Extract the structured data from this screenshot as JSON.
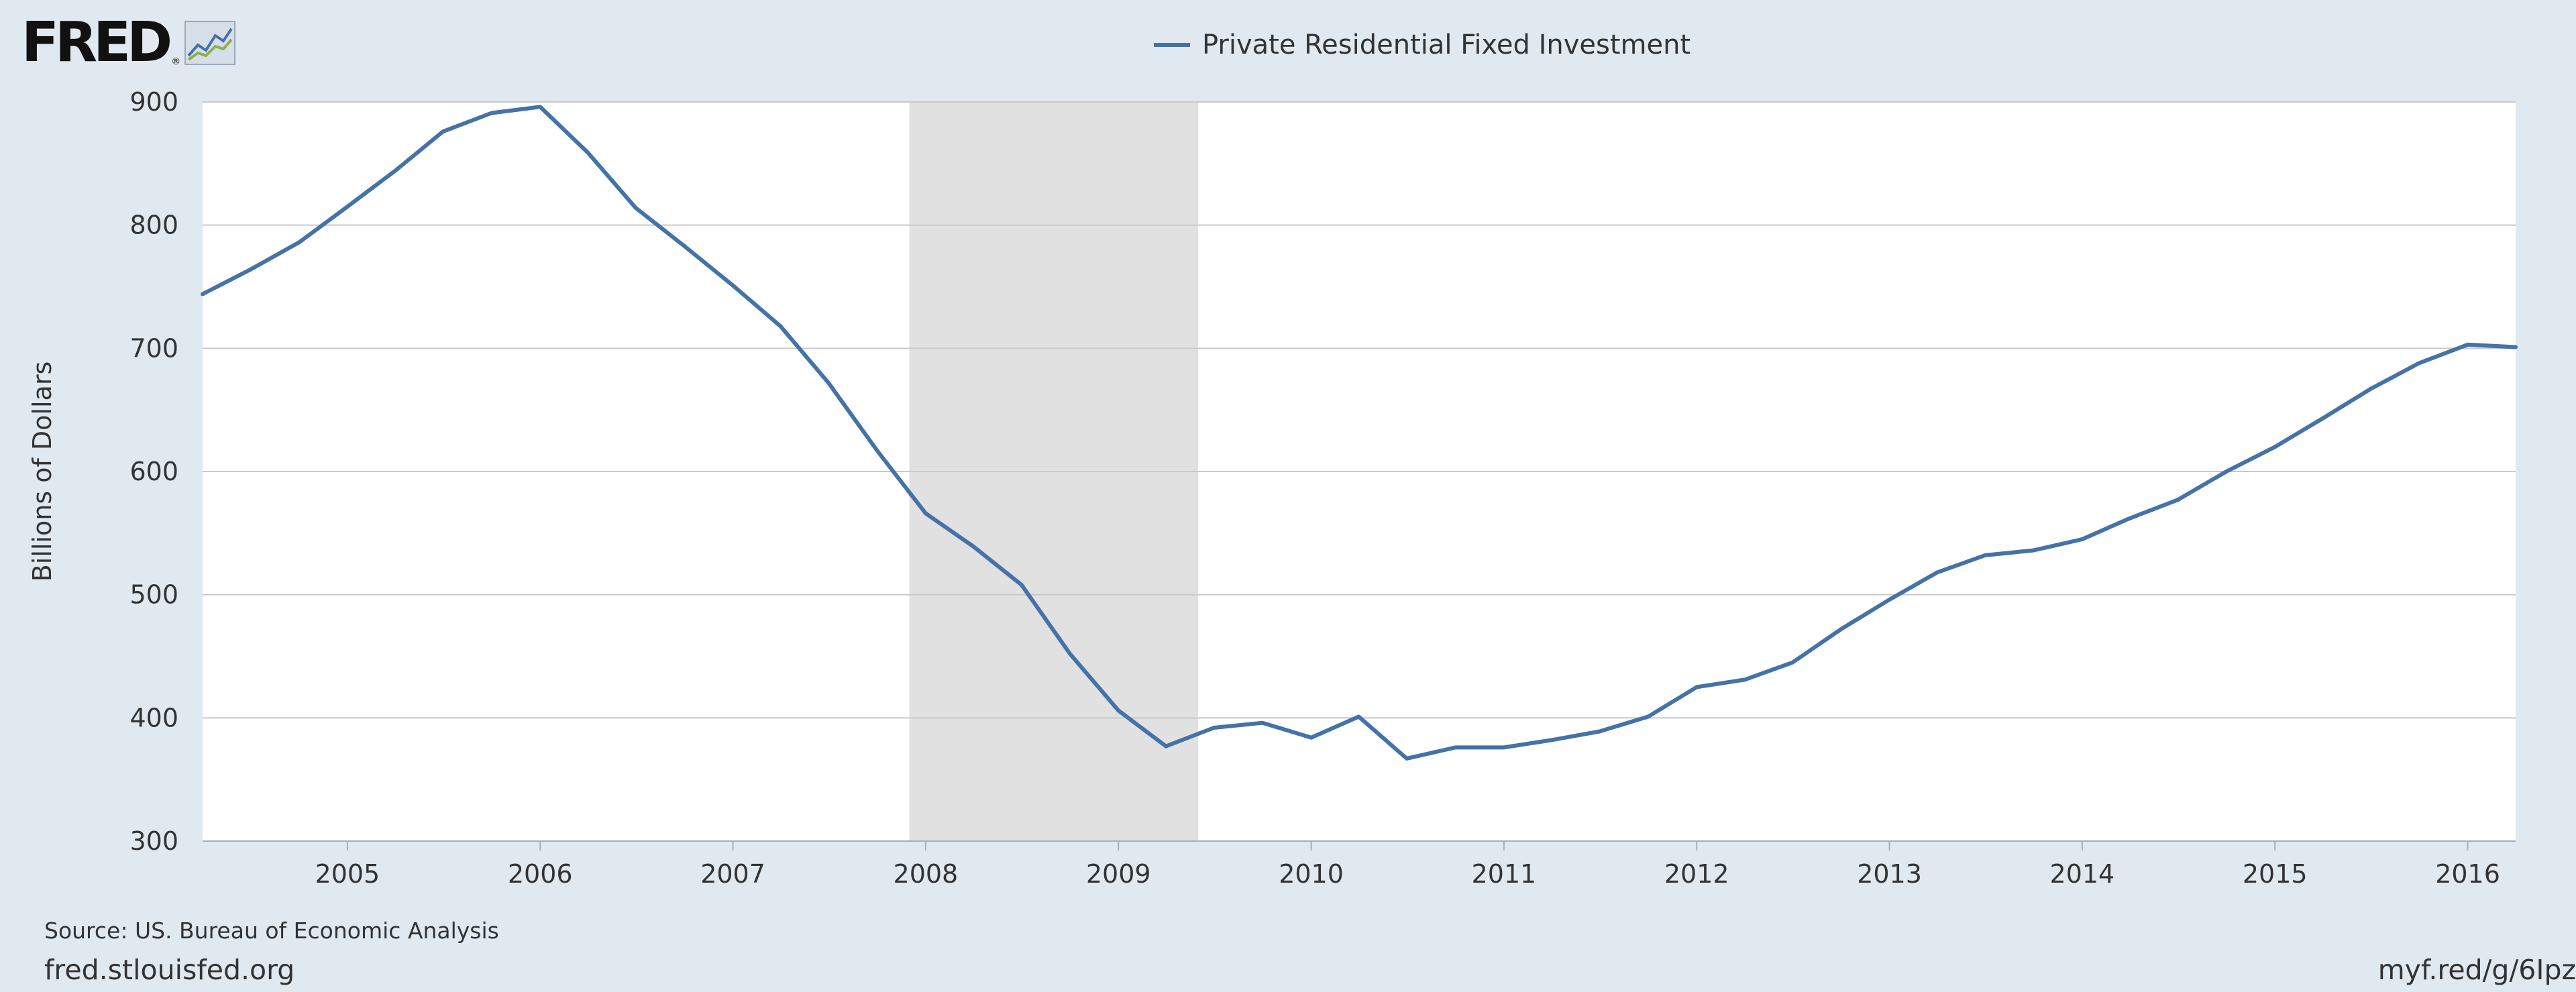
{
  "header": {
    "logo_text": "FRED",
    "logo_reg": "®"
  },
  "legend": {
    "label": "Private Residential Fixed Investment"
  },
  "footer": {
    "source": "Source: US. Bureau of Economic Analysis",
    "site": "fred.stlouisfed.org",
    "short_url": "myf.red/g/6Ipz"
  },
  "colors": {
    "background": "#e1e9f0",
    "plot_background": "#ffffff",
    "series": "#4572a7",
    "recession": "#e1e1e1",
    "grid": "#c9c9c9"
  },
  "chart_data": {
    "type": "line",
    "title": "",
    "xlabel": "",
    "ylabel": "Billions of Dollars",
    "ylim": [
      300,
      900
    ],
    "y_ticks": [
      300,
      400,
      500,
      600,
      700,
      800,
      900
    ],
    "x_tick_labels": [
      "2005",
      "2006",
      "2007",
      "2008",
      "2009",
      "2010",
      "2011",
      "2012",
      "2013",
      "2014",
      "2015",
      "2016"
    ],
    "x_tick_years": [
      2005,
      2006,
      2007,
      2008,
      2009,
      2010,
      2011,
      2012,
      2013,
      2014,
      2015,
      2016
    ],
    "xlim": [
      "2004-04-01",
      "2016-04-01"
    ],
    "grid": true,
    "legend_position": "top-center",
    "recessions": [
      {
        "start": "2007-12-01",
        "end": "2009-06-01"
      }
    ],
    "series": [
      {
        "name": "Private Residential Fixed Investment",
        "frequency": "quarterly",
        "x": [
          "2004-04-01",
          "2004-07-01",
          "2004-10-01",
          "2005-01-01",
          "2005-04-01",
          "2005-07-01",
          "2005-10-01",
          "2006-01-01",
          "2006-04-01",
          "2006-07-01",
          "2006-10-01",
          "2007-01-01",
          "2007-04-01",
          "2007-07-01",
          "2007-10-01",
          "2008-01-01",
          "2008-04-01",
          "2008-07-01",
          "2008-10-01",
          "2009-01-01",
          "2009-04-01",
          "2009-07-01",
          "2009-10-01",
          "2010-01-01",
          "2010-04-01",
          "2010-07-01",
          "2010-10-01",
          "2011-01-01",
          "2011-04-01",
          "2011-07-01",
          "2011-10-01",
          "2012-01-01",
          "2012-04-01",
          "2012-07-01",
          "2012-10-01",
          "2013-01-01",
          "2013-04-01",
          "2013-07-01",
          "2013-10-01",
          "2014-01-01",
          "2014-04-01",
          "2014-07-01",
          "2014-10-01",
          "2015-01-01",
          "2015-04-01",
          "2015-07-01",
          "2015-10-01",
          "2016-01-01",
          "2016-04-01"
        ],
        "values": [
          744,
          764,
          786,
          815,
          844,
          876,
          891,
          896,
          859,
          814,
          783,
          751,
          718,
          672,
          617,
          566,
          539,
          508,
          452,
          406,
          377,
          392,
          396,
          384,
          401,
          367,
          376,
          376,
          382,
          389,
          401,
          425,
          431,
          445,
          472,
          496,
          518,
          532,
          536,
          545,
          562,
          577,
          600,
          620,
          643,
          667,
          688,
          703,
          701
        ]
      }
    ]
  }
}
